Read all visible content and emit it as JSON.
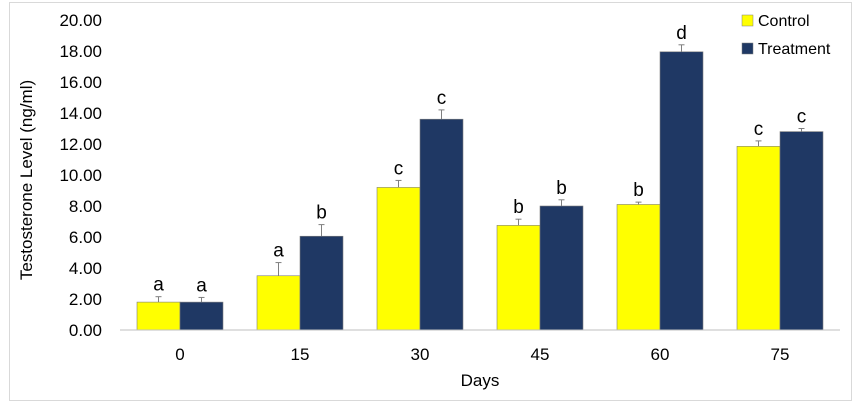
{
  "chart_data": {
    "type": "bar",
    "title": "",
    "xlabel": "Days",
    "ylabel": "Testosterone Level (ng/ml)",
    "categories": [
      "0",
      "15",
      "30",
      "45",
      "60",
      "75"
    ],
    "ylim": [
      0,
      20
    ],
    "yticks": [
      "0.00",
      "2.00",
      "4.00",
      "6.00",
      "8.00",
      "10.00",
      "12.00",
      "14.00",
      "16.00",
      "18.00",
      "20.00"
    ],
    "grid": false,
    "legend_position": "top-right",
    "series": [
      {
        "name": "Control",
        "color": "#ffff00",
        "values": [
          1.8,
          3.5,
          9.2,
          6.75,
          8.1,
          11.85
        ],
        "errors": [
          0.35,
          0.85,
          0.45,
          0.4,
          0.15,
          0.35
        ],
        "letters": [
          "a",
          "a",
          "c",
          "b",
          "b",
          "c"
        ]
      },
      {
        "name": "Treatment",
        "color": "#1f3864",
        "values": [
          1.8,
          6.05,
          13.6,
          8.0,
          17.95,
          12.8
        ],
        "errors": [
          0.3,
          0.75,
          0.6,
          0.4,
          0.45,
          0.2
        ],
        "letters": [
          "a",
          "b",
          "c",
          "b",
          "d",
          "c"
        ]
      }
    ]
  }
}
